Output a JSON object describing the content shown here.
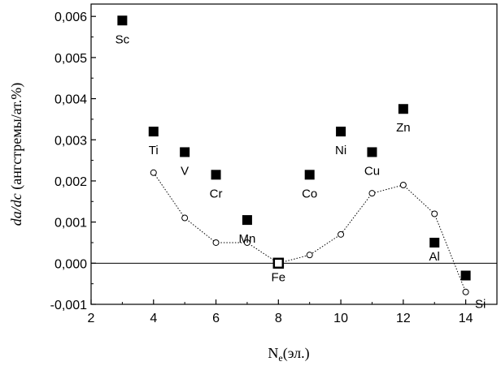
{
  "chart_data": {
    "type": "scatter",
    "xlabel": "N",
    "xlabel_sub": "e",
    "xlabel_unit": "(эл.)",
    "ylabel_italic": "da/dc",
    "ylabel_rest": " (ангстремы/ат.%)",
    "xlim": [
      2,
      15
    ],
    "ylim": [
      -0.001,
      0.0063
    ],
    "xticks": [
      2,
      4,
      6,
      8,
      10,
      12,
      14
    ],
    "xtick_labels": [
      "2",
      "4",
      "6",
      "8",
      "10",
      "12",
      "14"
    ],
    "yticks": [
      -0.001,
      0,
      0.001,
      0.002,
      0.003,
      0.004,
      0.005,
      0.006
    ],
    "ytick_labels": [
      "-0,001",
      "0,000",
      "0,001",
      "0,002",
      "0,003",
      "0,004",
      "0,005",
      "0,006"
    ],
    "zero_line": true,
    "grid": false,
    "series": [
      {
        "marker": "filled-square",
        "connected": false,
        "points": [
          {
            "label": "Sc",
            "x": 3,
            "y": 0.0059
          },
          {
            "label": "Ti",
            "x": 4,
            "y": 0.0032
          },
          {
            "label": "V",
            "x": 5,
            "y": 0.0027
          },
          {
            "label": "Cr",
            "x": 6,
            "y": 0.00215
          },
          {
            "label": "Mn",
            "x": 7,
            "y": 0.00105
          },
          {
            "label": "Fe",
            "x": 8,
            "y": 0.0
          },
          {
            "label": "Co",
            "x": 9,
            "y": 0.00215
          },
          {
            "label": "Ni",
            "x": 10,
            "y": 0.0032
          },
          {
            "label": "Cu",
            "x": 11,
            "y": 0.0027
          },
          {
            "label": "Zn",
            "x": 12,
            "y": 0.00375
          },
          {
            "label": "Al",
            "x": 13,
            "y": 0.0005
          },
          {
            "label": "Si",
            "x": 14,
            "y": -0.0003
          }
        ]
      },
      {
        "marker": "open-circle",
        "connected": true,
        "line_style": "dotted",
        "points": [
          {
            "x": 4,
            "y": 0.0022
          },
          {
            "x": 5,
            "y": 0.0011
          },
          {
            "x": 6,
            "y": 0.0005
          },
          {
            "x": 7,
            "y": 0.0005
          },
          {
            "x": 8,
            "y": 0.0
          },
          {
            "x": 9,
            "y": 0.0002
          },
          {
            "x": 10,
            "y": 0.0007
          },
          {
            "x": 11,
            "y": 0.0017
          },
          {
            "x": 12,
            "y": 0.0019
          },
          {
            "x": 13,
            "y": 0.0012
          },
          {
            "x": 14,
            "y": -0.0007
          }
        ]
      }
    ]
  }
}
